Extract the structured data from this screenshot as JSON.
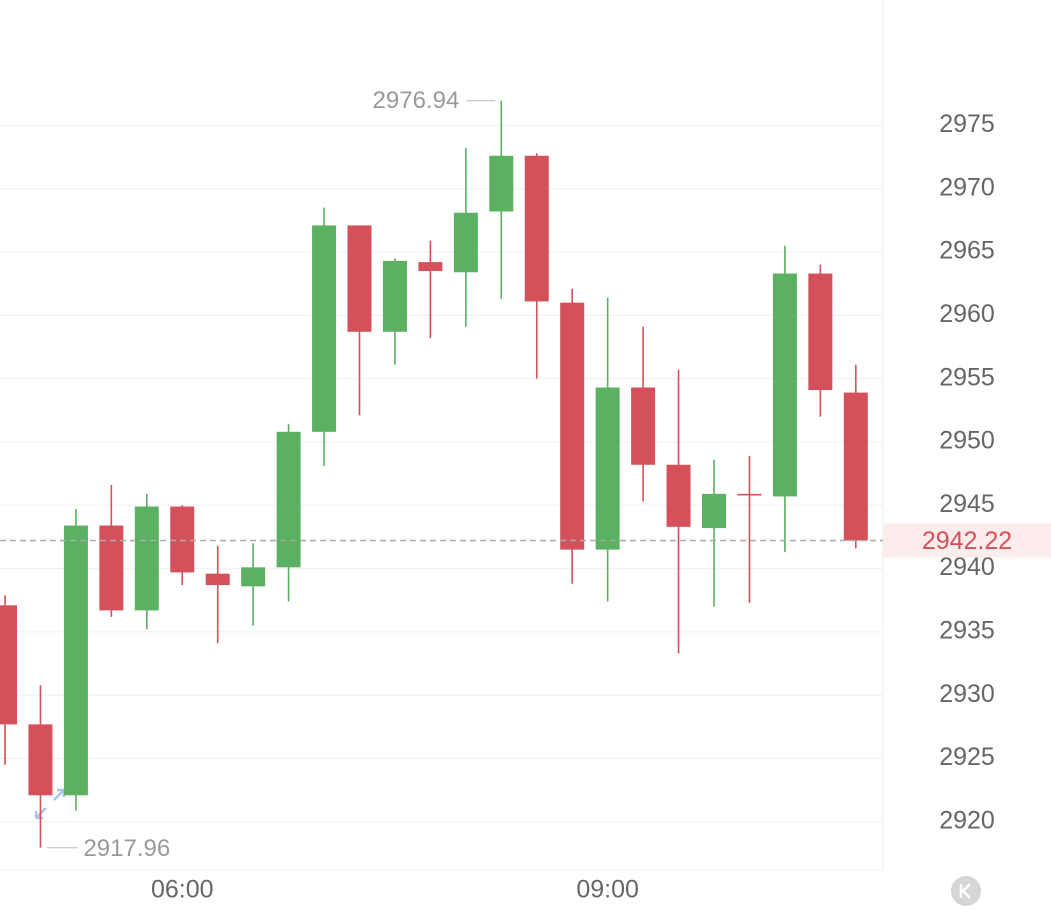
{
  "chart_data": {
    "type": "candlestick",
    "categories": [
      null,
      null,
      null,
      null,
      null,
      "06:00",
      null,
      null,
      null,
      null,
      null,
      null,
      null,
      null,
      null,
      null,
      null,
      "09:00",
      null,
      null,
      null,
      null,
      null,
      null,
      null
    ],
    "open": [
      2937.1,
      2927.7,
      2922.1,
      2943.4,
      2936.7,
      2944.9,
      2939.6,
      2938.6,
      2940.1,
      2950.8,
      2967.1,
      2958.7,
      2964.2,
      2963.4,
      2968.2,
      2972.6,
      2961.0,
      2941.5,
      2954.3,
      2948.2,
      2943.2,
      2945.9,
      2945.7,
      2963.3,
      2953.9
    ],
    "high": [
      2937.9,
      2930.8,
      2944.7,
      2946.6,
      2945.9,
      2945.0,
      2941.8,
      2942.0,
      2951.4,
      2968.5,
      2967.1,
      2964.5,
      2965.9,
      2973.2,
      2976.94,
      2972.8,
      2962.1,
      2961.4,
      2959.1,
      2955.7,
      2948.6,
      2948.9,
      2965.5,
      2964.0,
      2956.1
    ],
    "low": [
      2924.5,
      2917.96,
      2920.9,
      2936.2,
      2935.2,
      2938.7,
      2934.1,
      2935.5,
      2937.4,
      2948.1,
      2952.1,
      2956.1,
      2958.2,
      2959.1,
      2961.3,
      2955.0,
      2938.8,
      2937.4,
      2945.3,
      2933.3,
      2937.0,
      2937.3,
      2941.3,
      2952.0,
      2941.6
    ],
    "close": [
      2927.7,
      2922.1,
      2943.4,
      2936.7,
      2944.9,
      2939.7,
      2938.7,
      2940.1,
      2950.8,
      2967.1,
      2958.7,
      2964.3,
      2963.5,
      2968.1,
      2972.6,
      2961.1,
      2941.5,
      2954.3,
      2948.2,
      2943.3,
      2945.9,
      2945.8,
      2963.3,
      2954.1,
      2942.22
    ],
    "up_color": "#5bb161",
    "down_color": "#d4505a",
    "ylim": [
      2916.2,
      2984.9
    ],
    "yticks": [
      2920,
      2925,
      2930,
      2935,
      2940,
      2945,
      2950,
      2955,
      2960,
      2965,
      2970,
      2975
    ],
    "grid": true
  }
}
